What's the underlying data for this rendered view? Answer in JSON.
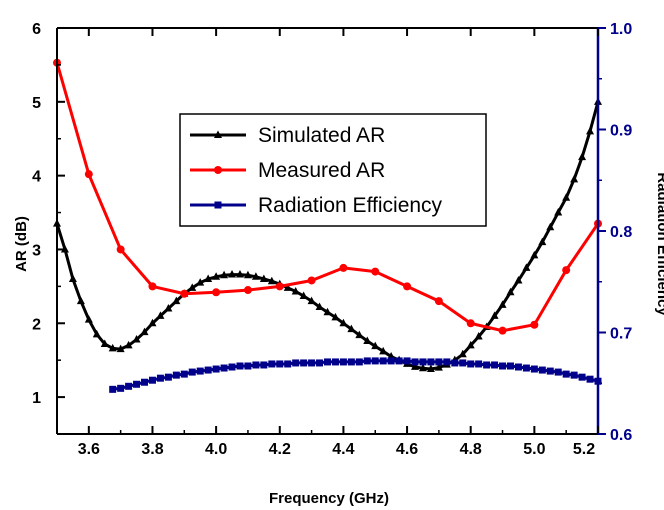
{
  "chart_data": {
    "type": "line",
    "xlabel": "Frequency (GHz)",
    "ylabel": "AR (dB)",
    "y2label": "Radiation Efficiency",
    "xlim": [
      3.5,
      5.2
    ],
    "ylim": [
      0.5,
      6
    ],
    "y2lim": [
      0.6,
      1.0
    ],
    "xticks": [
      "3.6",
      "3.8",
      "4.0",
      "4.2",
      "4.4",
      "4.6",
      "4.8",
      "5.0",
      "5.2"
    ],
    "yticks": [
      "1",
      "2",
      "3",
      "4",
      "5",
      "6"
    ],
    "y2ticks": [
      "0.6",
      "0.7",
      "0.8",
      "0.9",
      "1.0"
    ],
    "grid": false,
    "legend_position": "center",
    "colors": {
      "simulated": "#000000",
      "measured": "#ff0000",
      "efficiency": "#00008b",
      "right_axis": "#00008b"
    },
    "series": [
      {
        "name": "Simulated AR",
        "axis": "left",
        "marker": "triangle",
        "x": [
          3.5,
          3.525,
          3.55,
          3.575,
          3.6,
          3.625,
          3.65,
          3.675,
          3.7,
          3.725,
          3.75,
          3.775,
          3.8,
          3.825,
          3.85,
          3.875,
          3.9,
          3.925,
          3.95,
          3.975,
          4.0,
          4.025,
          4.05,
          4.075,
          4.1,
          4.125,
          4.15,
          4.175,
          4.2,
          4.225,
          4.25,
          4.275,
          4.3,
          4.325,
          4.35,
          4.375,
          4.4,
          4.425,
          4.45,
          4.475,
          4.5,
          4.525,
          4.55,
          4.575,
          4.6,
          4.625,
          4.65,
          4.675,
          4.7,
          4.725,
          4.75,
          4.775,
          4.8,
          4.825,
          4.85,
          4.875,
          4.9,
          4.925,
          4.95,
          4.975,
          5.0,
          5.025,
          5.05,
          5.075,
          5.1,
          5.125,
          5.15,
          5.175,
          5.2
        ],
        "values": [
          3.35,
          3.0,
          2.6,
          2.3,
          2.05,
          1.85,
          1.72,
          1.66,
          1.65,
          1.7,
          1.78,
          1.88,
          2.0,
          2.1,
          2.2,
          2.3,
          2.4,
          2.48,
          2.55,
          2.6,
          2.63,
          2.65,
          2.66,
          2.66,
          2.65,
          2.63,
          2.6,
          2.57,
          2.53,
          2.48,
          2.43,
          2.37,
          2.3,
          2.22,
          2.15,
          2.08,
          2.0,
          1.92,
          1.84,
          1.76,
          1.69,
          1.62,
          1.55,
          1.5,
          1.45,
          1.41,
          1.39,
          1.38,
          1.4,
          1.44,
          1.5,
          1.58,
          1.7,
          1.82,
          1.95,
          2.1,
          2.25,
          2.42,
          2.58,
          2.75,
          2.92,
          3.1,
          3.3,
          3.5,
          3.7,
          3.95,
          4.25,
          4.6,
          5.0
        ]
      },
      {
        "name": "Measured AR",
        "axis": "left",
        "marker": "circle",
        "x": [
          3.5,
          3.6,
          3.7,
          3.8,
          3.9,
          4.0,
          4.1,
          4.2,
          4.3,
          4.4,
          4.5,
          4.6,
          4.7,
          4.8,
          4.9,
          5.0,
          5.1,
          5.2
        ],
        "values": [
          5.53,
          4.02,
          3.0,
          2.5,
          2.4,
          2.42,
          2.45,
          2.5,
          2.58,
          2.75,
          2.7,
          2.5,
          2.3,
          2.0,
          1.9,
          1.98,
          2.72,
          3.35
        ]
      },
      {
        "name": "Radiation Efficiency",
        "axis": "right",
        "marker": "square",
        "x": [
          3.675,
          3.7,
          3.725,
          3.75,
          3.775,
          3.8,
          3.825,
          3.85,
          3.875,
          3.9,
          3.925,
          3.95,
          3.975,
          4.0,
          4.025,
          4.05,
          4.075,
          4.1,
          4.125,
          4.15,
          4.175,
          4.2,
          4.225,
          4.25,
          4.275,
          4.3,
          4.325,
          4.35,
          4.375,
          4.4,
          4.425,
          4.45,
          4.475,
          4.5,
          4.525,
          4.55,
          4.575,
          4.6,
          4.625,
          4.65,
          4.675,
          4.7,
          4.725,
          4.75,
          4.775,
          4.8,
          4.825,
          4.85,
          4.875,
          4.9,
          4.925,
          4.95,
          4.975,
          5.0,
          5.025,
          5.05,
          5.075,
          5.1,
          5.125,
          5.15,
          5.175,
          5.2
        ],
        "values": [
          0.644,
          0.645,
          0.647,
          0.649,
          0.651,
          0.653,
          0.655,
          0.656,
          0.658,
          0.659,
          0.661,
          0.662,
          0.663,
          0.664,
          0.665,
          0.666,
          0.667,
          0.667,
          0.668,
          0.668,
          0.669,
          0.669,
          0.669,
          0.67,
          0.67,
          0.67,
          0.67,
          0.671,
          0.671,
          0.671,
          0.671,
          0.671,
          0.672,
          0.672,
          0.672,
          0.672,
          0.672,
          0.672,
          0.671,
          0.671,
          0.671,
          0.671,
          0.671,
          0.67,
          0.67,
          0.669,
          0.669,
          0.668,
          0.668,
          0.667,
          0.667,
          0.666,
          0.665,
          0.664,
          0.663,
          0.662,
          0.661,
          0.659,
          0.658,
          0.656,
          0.654,
          0.652
        ]
      }
    ]
  }
}
